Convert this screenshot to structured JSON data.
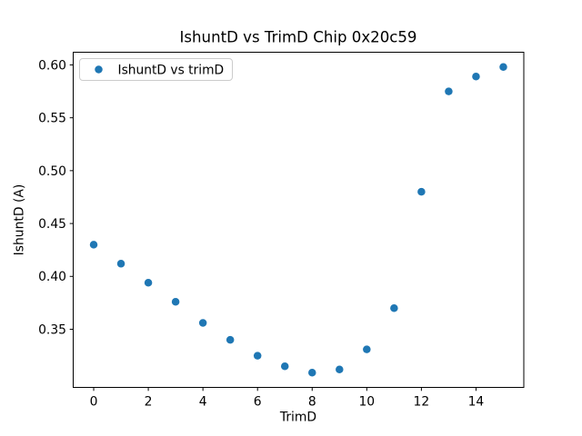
{
  "figure": {
    "title": "IshuntD vs TrimD Chip 0x20c59",
    "x_axis_label": "TrimD",
    "y_axis_label": "IshuntD (A)",
    "legend": {
      "label": "IshuntD vs trimD",
      "marker_icon": "filled-circle"
    },
    "colors": {
      "marker": "#1f77b4",
      "axis": "#000000",
      "legend_border": "#cccccc",
      "background": "#ffffff"
    }
  },
  "chart_data": {
    "type": "scatter",
    "title": "IshuntD vs TrimD Chip 0x20c59",
    "xlabel": "TrimD",
    "ylabel": "IshuntD (A)",
    "legend": [
      "IshuntD vs trimD"
    ],
    "legend_position": "upper left",
    "grid": false,
    "x": [
      0,
      1,
      2,
      3,
      4,
      5,
      6,
      7,
      8,
      9,
      10,
      11,
      12,
      13,
      14,
      15
    ],
    "y": [
      0.43,
      0.412,
      0.394,
      0.376,
      0.356,
      0.34,
      0.325,
      0.315,
      0.309,
      0.312,
      0.331,
      0.37,
      0.48,
      0.575,
      0.589,
      0.598
    ],
    "series": [
      {
        "name": "IshuntD vs trimD",
        "x": [
          0,
          1,
          2,
          3,
          4,
          5,
          6,
          7,
          8,
          9,
          10,
          11,
          12,
          13,
          14,
          15
        ],
        "y": [
          0.43,
          0.412,
          0.394,
          0.376,
          0.356,
          0.34,
          0.325,
          0.315,
          0.309,
          0.312,
          0.331,
          0.37,
          0.48,
          0.575,
          0.589,
          0.598
        ]
      }
    ],
    "xticks": [
      0,
      2,
      4,
      6,
      8,
      10,
      12,
      14
    ],
    "yticks": [
      0.35,
      0.4,
      0.45,
      0.5,
      0.55,
      0.6
    ],
    "xlim": [
      -0.75,
      15.75
    ],
    "ylim": [
      0.295,
      0.612
    ]
  }
}
